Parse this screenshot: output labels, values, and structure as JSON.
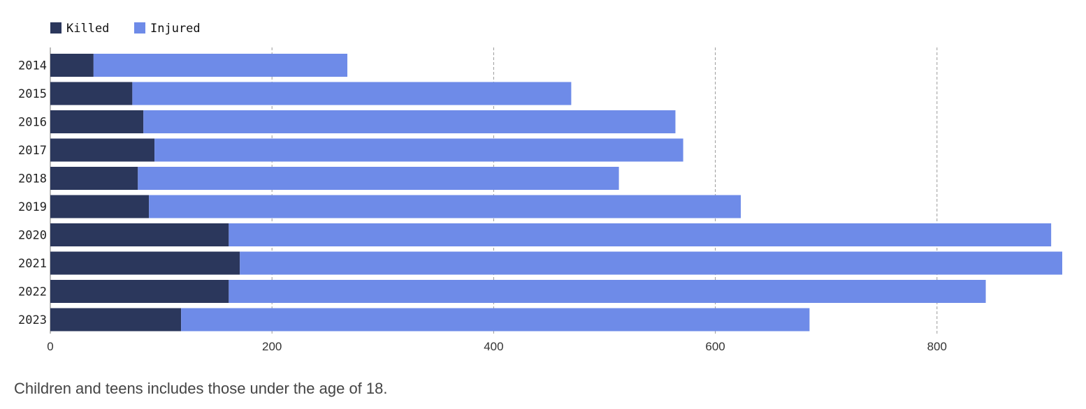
{
  "chart_data": {
    "type": "bar",
    "orientation": "horizontal",
    "stacked": true,
    "categories": [
      "2014",
      "2015",
      "2016",
      "2017",
      "2018",
      "2019",
      "2020",
      "2021",
      "2022",
      "2023"
    ],
    "series": [
      {
        "name": "Killed",
        "color": "#2b375c",
        "values": [
          39,
          74,
          84,
          94,
          79,
          89,
          161,
          171,
          161,
          118
        ]
      },
      {
        "name": "Injured",
        "color": "#6e8be8",
        "values": [
          229,
          396,
          480,
          477,
          434,
          534,
          742,
          742,
          683,
          567
        ]
      }
    ],
    "xlim": [
      0,
      913
    ],
    "xticks": [
      0,
      200,
      400,
      600,
      800
    ],
    "grid": "vertical-dashed",
    "legend_position": "top-left"
  },
  "footnote": "Children and teens includes those under the age of 18."
}
